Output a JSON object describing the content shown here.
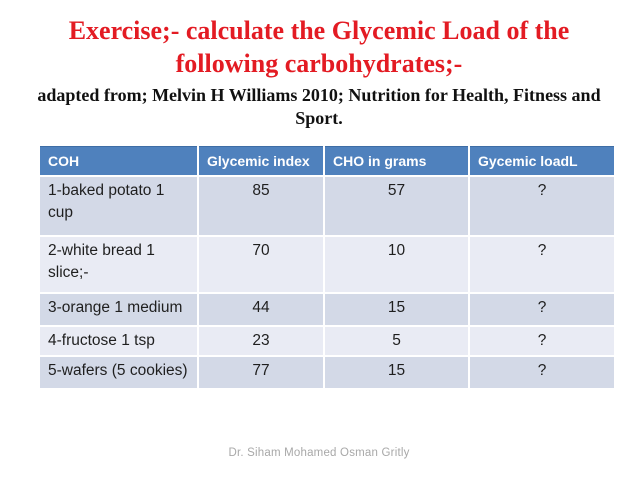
{
  "slide": {
    "title": "Exercise;- calculate the Glycemic Load of the following carbohydrates;-",
    "subtitle": "adapted from; Melvin H Williams 2010; Nutrition for Health, Fitness and Sport.",
    "footer": "Dr. Siham Mohamed Osman Gritly"
  },
  "colors": {
    "title_red": "#e31b23",
    "header_blue": "#4f81bd",
    "band_dark": "#d3d9e7",
    "band_light": "#e9ebf4",
    "footer_gray": "#a8a8a8"
  },
  "table": {
    "headers": [
      "COH",
      "Glycemic index",
      "CHO in grams",
      "Gycemic loadL"
    ],
    "rows": [
      {
        "coh": "1-baked potato 1 cup",
        "glycemic_index": "85",
        "cho_grams": "57",
        "glycemic_load": "?"
      },
      {
        "coh": "2-white bread 1 slice;-",
        "glycemic_index": "70",
        "cho_grams": "10",
        "glycemic_load": "?"
      },
      {
        "coh": "3-orange 1 medium",
        "glycemic_index": "44",
        "cho_grams": "15",
        "glycemic_load": "?"
      },
      {
        "coh": "4-fructose 1 tsp",
        "glycemic_index": "23",
        "cho_grams": "5",
        "glycemic_load": "?"
      },
      {
        "coh": "5-wafers (5 cookies)",
        "glycemic_index": "77",
        "cho_grams": "15",
        "glycemic_load": "?"
      }
    ]
  }
}
